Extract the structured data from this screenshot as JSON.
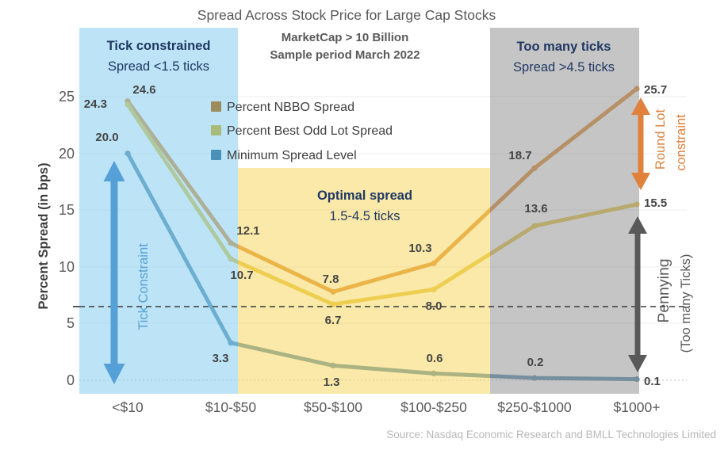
{
  "chart_data": {
    "type": "line",
    "title": "Spread Across Stock Price for Large Cap Stocks",
    "subtitle_line1": "MarketCap > 10 Billion",
    "subtitle_line2": "Sample period March 2022",
    "source": "Source: Nasdaq Economic Research and BMLL Technologies Limited",
    "ylabel": "Percent Spread (in bps)",
    "ylim": [
      0,
      25
    ],
    "yticks": [
      0,
      5,
      10,
      15,
      20,
      25
    ],
    "grid": "horizontal",
    "legend_position": "inside-top-left",
    "dashed_reference_line_bps": 6.5,
    "categories": [
      "<$10",
      "$10-$50",
      "$50-$100",
      "$100-$250",
      "$250-$1000",
      "$1000+"
    ],
    "series": [
      {
        "id": "nbbo",
        "name": "Percent NBBO Spread",
        "color": "#dd8a2e",
        "legend_color": "#9b8c5e",
        "values": [
          24.6,
          12.1,
          7.8,
          10.3,
          18.7,
          25.7
        ],
        "labels": [
          "24.6",
          "12.1",
          "7.8",
          "10.3",
          "18.7",
          "25.7"
        ]
      },
      {
        "id": "odd-lot",
        "name": "Percent Best Odd Lot Spread",
        "color": "#e2c33f",
        "legend_color": "#a9ba7a",
        "values": [
          24.3,
          10.7,
          6.7,
          8.0,
          13.6,
          15.5
        ],
        "labels": [
          "24.3",
          "10.7",
          "6.7",
          "8.0",
          "13.6",
          "15.5"
        ]
      },
      {
        "id": "min-spread",
        "name": "Minimum Spread Level",
        "color": "#5088ab",
        "legend_color": "#4b90b8",
        "values": [
          20.0,
          3.3,
          1.3,
          0.6,
          0.2,
          0.1
        ],
        "labels": [
          "20.0",
          "3.3",
          "1.3",
          "0.6",
          "0.2",
          "0.1"
        ]
      }
    ],
    "annotations": {
      "regions": [
        {
          "id": "tick-constrained",
          "title": "Tick constrained",
          "subtitle": "Spread <1.5 ticks",
          "fill": "rgba(133,205,239,0.55)",
          "label_color": "#203864"
        },
        {
          "id": "optimal-spread",
          "title": "Optimal spread",
          "subtitle": "1.5-4.5 ticks",
          "fill": "rgba(246,215,97,0.55)",
          "label_color": "#203864"
        },
        {
          "id": "too-many-ticks",
          "title": "Too many ticks",
          "subtitle": "Spread >4.5 ticks",
          "fill": "rgba(150,150,150,0.55)",
          "label_color": "#203864"
        }
      ],
      "arrows": [
        {
          "id": "tick-constraint",
          "label": "Tick Constraint",
          "color": "#56a0d8"
        },
        {
          "id": "round-lot",
          "label_line1": "Round Lot",
          "label_line2": "constraint",
          "color": "#e0813c"
        },
        {
          "id": "pennying",
          "label_line1": "Pennying",
          "label_line2": "(Too many Ticks)",
          "color": "#595959"
        }
      ]
    }
  }
}
